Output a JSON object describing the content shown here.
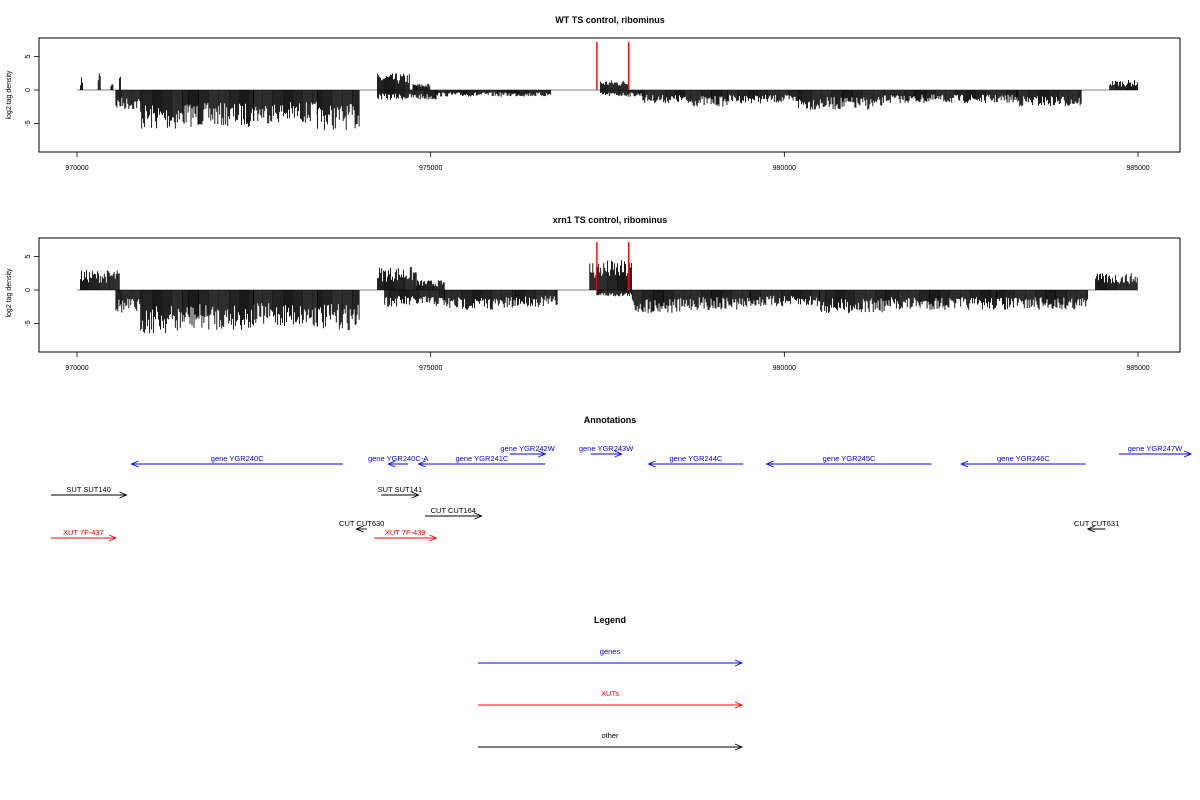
{
  "colors": {
    "genes": "#0000ff",
    "xuts": "#ff0000",
    "other": "#000000",
    "marker": "#ff0000"
  },
  "chart_data": [
    {
      "type": "bar",
      "title": "WT TS control, ribominus",
      "xlabel": "",
      "ylabel": "log2 tag density",
      "xlim": [
        970000,
        985000
      ],
      "ylim": [
        -8,
        7
      ],
      "xticks": [
        970000,
        975000,
        980000,
        985000
      ],
      "xtick_labels": [
        "970000",
        "975000",
        "980000",
        "985000"
      ],
      "yticks": [
        -5,
        0,
        5
      ],
      "ytick_labels": [
        "-5",
        "0",
        "5"
      ],
      "red_markers_x": [
        977350,
        977800
      ],
      "profile": [
        {
          "x": [
            970050,
            970080
          ],
          "y": 2.0
        },
        {
          "x": [
            970300,
            970330
          ],
          "y": 3.0
        },
        {
          "x": [
            970480,
            970510
          ],
          "y": 1.0
        },
        {
          "x": [
            970600,
            970620
          ],
          "y": 2.5
        },
        {
          "x": [
            970550,
            970900
          ],
          "y": -3.0
        },
        {
          "x": [
            970900,
            971500
          ],
          "y": -6.0
        },
        {
          "x": [
            971500,
            972500
          ],
          "y": -5.5
        },
        {
          "x": [
            972500,
            973400
          ],
          "y": -5.0
        },
        {
          "x": [
            973400,
            974000
          ],
          "y": -6.0
        },
        {
          "x": [
            974250,
            974700
          ],
          "y": 2.5
        },
        {
          "x": [
            974750,
            975000
          ],
          "y": 1.0
        },
        {
          "x": [
            974250,
            975100
          ],
          "y": -1.5
        },
        {
          "x": [
            975100,
            976700
          ],
          "y": -1.0
        },
        {
          "x": [
            977400,
            977800
          ],
          "y": 1.5
        },
        {
          "x": [
            977400,
            978000
          ],
          "y": -1.0
        },
        {
          "x": [
            978000,
            978600
          ],
          "y": -2.0
        },
        {
          "x": [
            978600,
            979200
          ],
          "y": -2.5
        },
        {
          "x": [
            979200,
            980200
          ],
          "y": -2.0
        },
        {
          "x": [
            980200,
            981400
          ],
          "y": -3.0
        },
        {
          "x": [
            981400,
            983300
          ],
          "y": -2.0
        },
        {
          "x": [
            983300,
            984200
          ],
          "y": -2.5
        },
        {
          "x": [
            984600,
            985000
          ],
          "y": 1.5
        }
      ]
    },
    {
      "type": "bar",
      "title": "xrn1 TS control, ribominus",
      "xlabel": "",
      "ylabel": "log2 tag density",
      "xlim": [
        970000,
        985000
      ],
      "ylim": [
        -8,
        7
      ],
      "xticks": [
        970000,
        975000,
        980000,
        985000
      ],
      "xtick_labels": [
        "970000",
        "975000",
        "980000",
        "985000"
      ],
      "yticks": [
        -5,
        0,
        5
      ],
      "ytick_labels": [
        "-5",
        "0",
        "5"
      ],
      "red_markers_x": [
        977350,
        977800
      ],
      "profile": [
        {
          "x": [
            970050,
            970600
          ],
          "y": 3.0
        },
        {
          "x": [
            970550,
            970900
          ],
          "y": -3.5
        },
        {
          "x": [
            970900,
            971500
          ],
          "y": -6.5
        },
        {
          "x": [
            971500,
            972500
          ],
          "y": -6.0
        },
        {
          "x": [
            972500,
            973400
          ],
          "y": -5.5
        },
        {
          "x": [
            973400,
            974000
          ],
          "y": -6.0
        },
        {
          "x": [
            974250,
            974800
          ],
          "y": 3.5
        },
        {
          "x": [
            974800,
            975200
          ],
          "y": 1.5
        },
        {
          "x": [
            974350,
            975200
          ],
          "y": -2.5
        },
        {
          "x": [
            975200,
            976200
          ],
          "y": -3.0
        },
        {
          "x": [
            976200,
            976800
          ],
          "y": -2.5
        },
        {
          "x": [
            977250,
            977850
          ],
          "y": 4.5
        },
        {
          "x": [
            977350,
            977850
          ],
          "y": -1.0
        },
        {
          "x": [
            977850,
            978600
          ],
          "y": -3.5
        },
        {
          "x": [
            978600,
            979500
          ],
          "y": -3.0
        },
        {
          "x": [
            979500,
            980500
          ],
          "y": -2.5
        },
        {
          "x": [
            980500,
            981500
          ],
          "y": -3.5
        },
        {
          "x": [
            981500,
            983000
          ],
          "y": -3.0
        },
        {
          "x": [
            983000,
            984300
          ],
          "y": -3.0
        },
        {
          "x": [
            984400,
            985000
          ],
          "y": 2.5
        }
      ]
    }
  ],
  "annotations": {
    "title": "Annotations",
    "items": [
      {
        "label": "gene YGR240C",
        "kind": "genes",
        "start": 970770,
        "end": 973760,
        "row": 2,
        "dir": "left"
      },
      {
        "label": "gene YGR240C-A",
        "kind": "genes",
        "start": 974400,
        "end": 974680,
        "row": 2,
        "dir": "left"
      },
      {
        "label": "gene YGR241C",
        "kind": "genes",
        "start": 974830,
        "end": 976620,
        "row": 2,
        "dir": "left"
      },
      {
        "label": "gene YGR242W",
        "kind": "genes",
        "start": 976120,
        "end": 976620,
        "row": 1,
        "dir": "right"
      },
      {
        "label": "gene YGR243W",
        "kind": "genes",
        "start": 977260,
        "end": 977700,
        "row": 1,
        "dir": "right"
      },
      {
        "label": "gene YGR244C",
        "kind": "genes",
        "start": 978080,
        "end": 979420,
        "row": 2,
        "dir": "left"
      },
      {
        "label": "gene YGR245C",
        "kind": "genes",
        "start": 979750,
        "end": 982080,
        "row": 2,
        "dir": "left"
      },
      {
        "label": "gene YGR246C",
        "kind": "genes",
        "start": 982500,
        "end": 984260,
        "row": 2,
        "dir": "left"
      },
      {
        "label": "gene YGR247W",
        "kind": "genes",
        "start": 984730,
        "end": 985750,
        "row": 1,
        "dir": "right"
      },
      {
        "label": "SUT SUT140",
        "kind": "other",
        "start": 969630,
        "end": 970700,
        "row": 3,
        "dir": "right"
      },
      {
        "label": "SUT SUT141",
        "kind": "other",
        "start": 974300,
        "end": 974830,
        "row": 3,
        "dir": "right"
      },
      {
        "label": "CUT CUT164",
        "kind": "other",
        "start": 974920,
        "end": 975720,
        "row": 4,
        "dir": "right"
      },
      {
        "label": "CUT CUT630",
        "kind": "other",
        "start": 973950,
        "end": 974100,
        "row": 5,
        "dir": "left"
      },
      {
        "label": "CUT CUT631",
        "kind": "other",
        "start": 984290,
        "end": 984540,
        "row": 5,
        "dir": "left"
      },
      {
        "label": "XUT 7F-437",
        "kind": "xuts",
        "start": 969630,
        "end": 970550,
        "row": 6,
        "dir": "right"
      },
      {
        "label": "XUT 7F-439",
        "kind": "xuts",
        "start": 974200,
        "end": 975080,
        "row": 6,
        "dir": "right"
      }
    ]
  },
  "legend": {
    "title": "Legend",
    "items": [
      {
        "label": "genes",
        "kind": "genes"
      },
      {
        "label": "XUTs",
        "kind": "xuts"
      },
      {
        "label": "other",
        "kind": "other"
      }
    ]
  }
}
